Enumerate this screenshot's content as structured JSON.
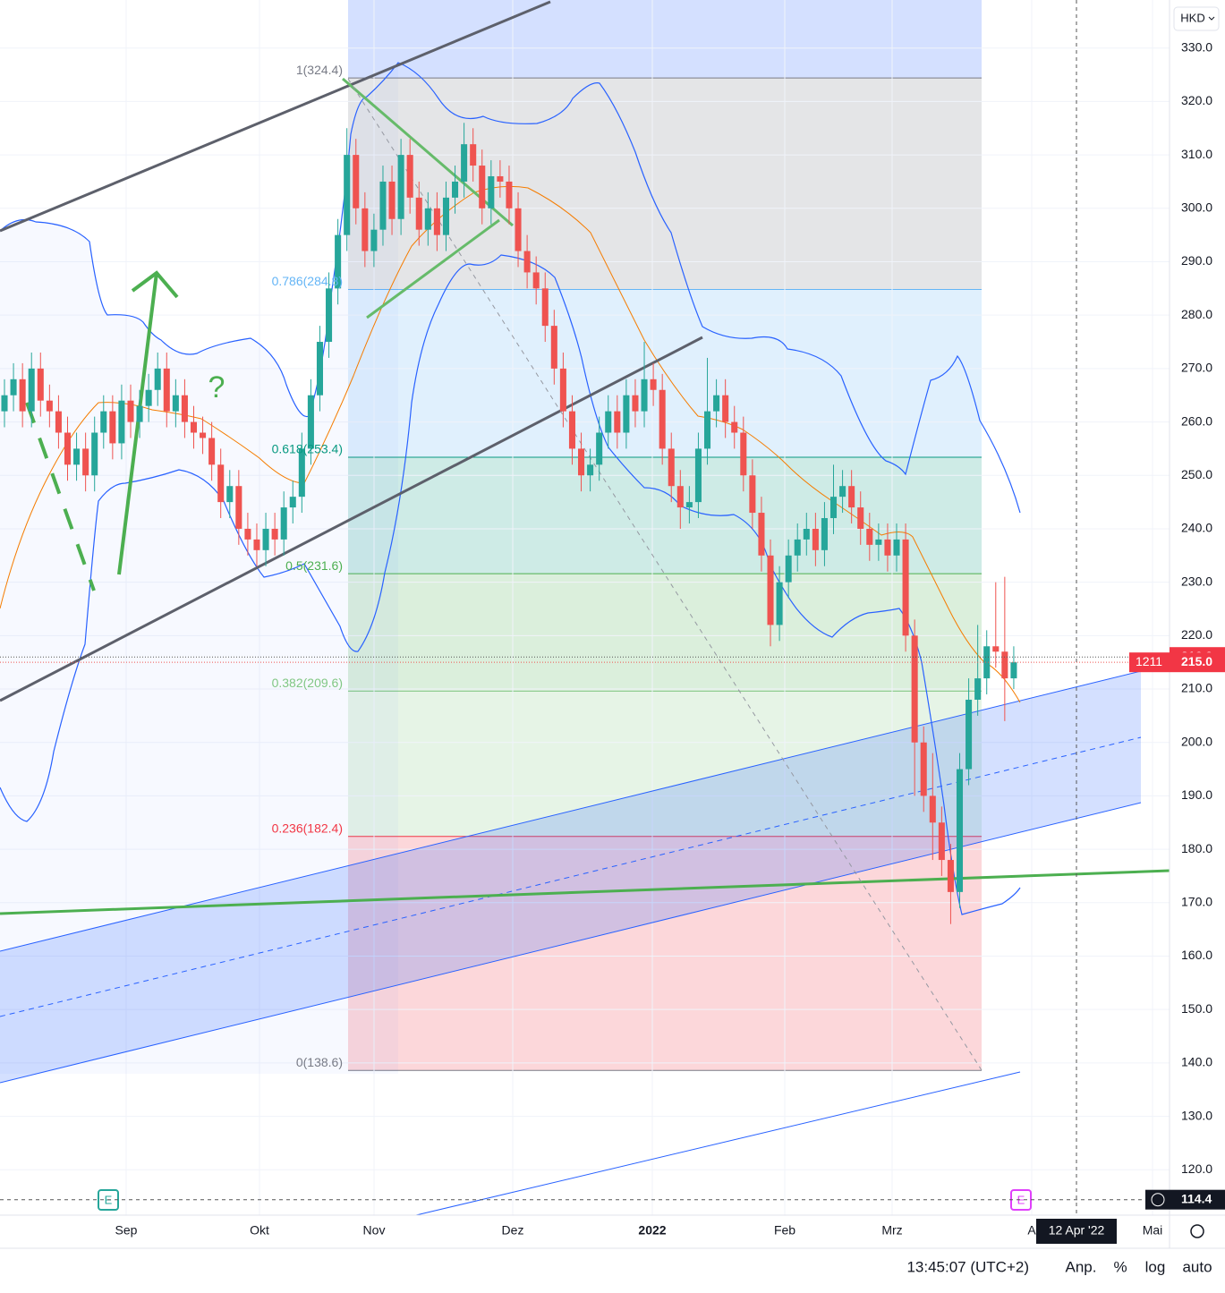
{
  "chart_data": {
    "type": "candlestick",
    "currency": "HKD",
    "up_color": "#26a69a",
    "down_color": "#ef5350",
    "ylim": [
      111.5,
      339.0
    ],
    "yticks": [
      {
        "value": 330,
        "label": "330.0"
      },
      {
        "value": 320,
        "label": "320.0"
      },
      {
        "value": 310,
        "label": "310.0"
      },
      {
        "value": 300,
        "label": "300.0"
      },
      {
        "value": 290,
        "label": "290.0"
      },
      {
        "value": 280,
        "label": "280.0"
      },
      {
        "value": 270,
        "label": "270.0"
      },
      {
        "value": 260,
        "label": "260.0"
      },
      {
        "value": 250,
        "label": "250.0"
      },
      {
        "value": 240,
        "label": "240.0"
      },
      {
        "value": 230,
        "label": "230.0"
      },
      {
        "value": 220,
        "label": "220.0"
      },
      {
        "value": 210,
        "label": "210.0"
      },
      {
        "value": 200,
        "label": "200.0"
      },
      {
        "value": 190,
        "label": "190.0"
      },
      {
        "value": 180,
        "label": "180.0"
      },
      {
        "value": 170,
        "label": "170.0"
      },
      {
        "value": 160,
        "label": "160.0"
      },
      {
        "value": 150,
        "label": "150.0"
      },
      {
        "value": 140,
        "label": "140.0"
      },
      {
        "value": 130,
        "label": "130.0"
      },
      {
        "value": 120,
        "label": "120.0"
      }
    ],
    "x_labels": [
      "Sep",
      "Okt",
      "Nov",
      "Dez",
      "2022",
      "Feb",
      "Mrz",
      "A",
      "Mai"
    ],
    "grid": true,
    "fib_levels": [
      {
        "label": "1(324.4)",
        "value": 324.4,
        "color": "#787b86"
      },
      {
        "label": "0.786(284.8)",
        "value": 284.8,
        "color": "#64b5f6"
      },
      {
        "label": "0.618(253.4)",
        "value": 253.4,
        "color": "#089981"
      },
      {
        "label": "0.5(231.6)",
        "value": 231.6,
        "color": "#4caf50"
      },
      {
        "label": "0.382(209.6)",
        "value": 209.6,
        "color": "#81c784"
      },
      {
        "label": "0.236(182.4)",
        "value": 182.4,
        "color": "#f23645"
      },
      {
        "label": "0(138.6)",
        "value": 138.6,
        "color": "#787b86"
      }
    ],
    "annotation": "?",
    "earnings_marker": "E",
    "price_tags": [
      {
        "value": 216.0,
        "label": "216.0"
      },
      {
        "value": 215.0,
        "label": "215.0"
      }
    ],
    "countdown": "1211",
    "crosshair": {
      "value": 114.4,
      "label": "114.4",
      "date": "12 Apr '22"
    },
    "footer": {
      "time": "13:45:07 (UTC+2)",
      "buttons": [
        "Anp.",
        "%",
        "log",
        "auto"
      ]
    },
    "candles": [
      [
        262,
        268,
        259,
        265
      ],
      [
        265,
        271,
        262,
        268
      ],
      [
        268,
        271,
        259,
        262
      ],
      [
        262,
        273,
        259,
        270
      ],
      [
        270,
        273,
        261,
        264
      ],
      [
        264,
        267,
        259,
        262
      ],
      [
        262,
        265,
        255,
        258
      ],
      [
        258,
        261,
        249,
        252
      ],
      [
        252,
        258,
        249,
        255
      ],
      [
        255,
        258,
        247,
        250
      ],
      [
        250,
        261,
        247,
        258
      ],
      [
        258,
        265,
        255,
        262
      ],
      [
        262,
        265,
        253,
        256
      ],
      [
        256,
        267,
        253,
        264
      ],
      [
        264,
        267,
        257,
        260
      ],
      [
        260,
        266,
        257,
        263
      ],
      [
        263,
        269,
        260,
        266
      ],
      [
        266,
        273,
        263,
        270
      ],
      [
        270,
        273,
        259,
        262
      ],
      [
        262,
        268,
        259,
        265
      ],
      [
        265,
        268,
        257,
        260
      ],
      [
        260,
        263,
        255,
        258
      ],
      [
        258,
        261,
        254,
        257
      ],
      [
        257,
        260,
        249,
        252
      ],
      [
        252,
        255,
        242,
        245
      ],
      [
        245,
        251,
        242,
        248
      ],
      [
        248,
        251,
        237,
        240
      ],
      [
        240,
        243,
        235,
        238
      ],
      [
        238,
        241,
        233,
        236
      ],
      [
        236,
        243,
        233,
        240
      ],
      [
        240,
        243,
        235,
        238
      ],
      [
        238,
        247,
        235,
        244
      ],
      [
        244,
        249,
        241,
        246
      ],
      [
        246,
        258,
        243,
        255
      ],
      [
        255,
        268,
        252,
        265
      ],
      [
        265,
        278,
        262,
        275
      ],
      [
        275,
        288,
        272,
        285
      ],
      [
        285,
        298,
        282,
        295
      ],
      [
        295,
        315,
        292,
        310
      ],
      [
        310,
        313,
        297,
        300
      ],
      [
        300,
        303,
        289,
        292
      ],
      [
        292,
        299,
        289,
        296
      ],
      [
        296,
        308,
        293,
        305
      ],
      [
        305,
        308,
        295,
        298
      ],
      [
        298,
        313,
        295,
        310
      ],
      [
        310,
        313,
        299,
        302
      ],
      [
        302,
        305,
        293,
        296
      ],
      [
        296,
        303,
        293,
        300
      ],
      [
        300,
        303,
        292,
        295
      ],
      [
        295,
        305,
        292,
        302
      ],
      [
        302,
        308,
        299,
        305
      ],
      [
        305,
        316,
        302,
        312
      ],
      [
        312,
        315,
        305,
        308
      ],
      [
        308,
        311,
        297,
        300
      ],
      [
        300,
        309,
        297,
        306
      ],
      [
        306,
        309,
        302,
        305
      ],
      [
        305,
        308,
        297,
        300
      ],
      [
        300,
        303,
        289,
        292
      ],
      [
        292,
        295,
        285,
        288
      ],
      [
        288,
        291,
        282,
        285
      ],
      [
        285,
        288,
        275,
        278
      ],
      [
        278,
        281,
        267,
        270
      ],
      [
        270,
        273,
        259,
        262
      ],
      [
        262,
        265,
        252,
        255
      ],
      [
        255,
        258,
        247,
        250
      ],
      [
        250,
        255,
        247,
        252
      ],
      [
        252,
        261,
        249,
        258
      ],
      [
        258,
        265,
        255,
        262
      ],
      [
        262,
        265,
        255,
        258
      ],
      [
        258,
        268,
        255,
        265
      ],
      [
        265,
        268,
        259,
        262
      ],
      [
        262,
        275,
        259,
        268
      ],
      [
        268,
        271,
        263,
        266
      ],
      [
        266,
        269,
        252,
        255
      ],
      [
        255,
        258,
        245,
        248
      ],
      [
        248,
        251,
        240,
        244
      ],
      [
        244,
        248,
        241,
        245
      ],
      [
        245,
        258,
        242,
        255
      ],
      [
        255,
        272,
        252,
        262
      ],
      [
        262,
        268,
        259,
        265
      ],
      [
        265,
        268,
        257,
        260
      ],
      [
        260,
        263,
        255,
        258
      ],
      [
        258,
        261,
        247,
        250
      ],
      [
        250,
        253,
        240,
        243
      ],
      [
        243,
        246,
        232,
        235
      ],
      [
        235,
        238,
        218,
        222
      ],
      [
        222,
        233,
        219,
        230
      ],
      [
        230,
        238,
        227,
        235
      ],
      [
        235,
        241,
        232,
        238
      ],
      [
        238,
        243,
        235,
        240
      ],
      [
        240,
        243,
        233,
        236
      ],
      [
        236,
        245,
        233,
        242
      ],
      [
        242,
        252,
        239,
        246
      ],
      [
        246,
        251,
        243,
        248
      ],
      [
        248,
        251,
        241,
        244
      ],
      [
        244,
        247,
        237,
        240
      ],
      [
        240,
        243,
        234,
        237
      ],
      [
        237,
        241,
        234,
        238
      ],
      [
        238,
        241,
        232,
        235
      ],
      [
        235,
        241,
        232,
        238
      ],
      [
        238,
        241,
        217,
        220
      ],
      [
        220,
        223,
        190,
        200
      ],
      [
        200,
        203,
        187,
        190
      ],
      [
        190,
        198,
        178,
        185
      ],
      [
        185,
        188,
        175,
        178
      ],
      [
        178,
        181,
        166,
        172
      ],
      [
        172,
        198,
        169,
        195
      ],
      [
        195,
        212,
        192,
        208
      ],
      [
        208,
        222,
        205,
        212
      ],
      [
        212,
        221,
        209,
        218
      ],
      [
        218,
        230,
        214,
        217
      ],
      [
        217,
        231,
        204,
        212
      ],
      [
        212,
        218,
        210,
        215
      ]
    ]
  }
}
